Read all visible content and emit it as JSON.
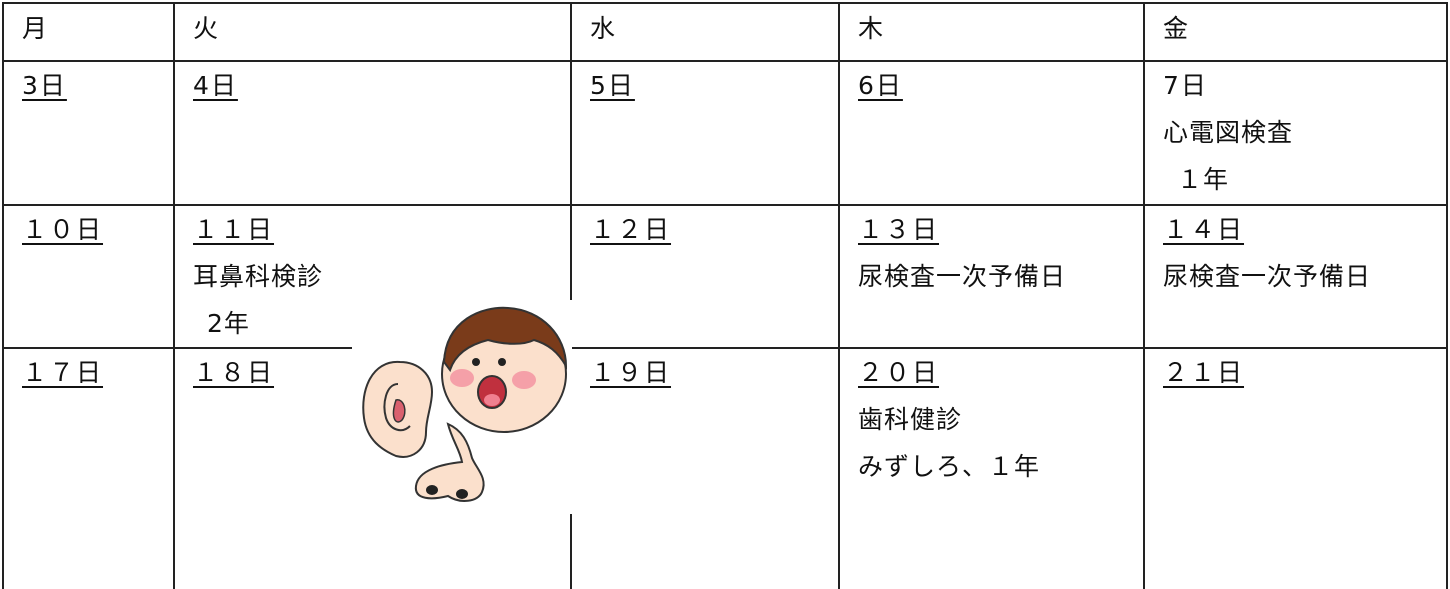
{
  "table": {
    "header": [
      "月",
      "火",
      "水",
      "木",
      "金"
    ],
    "rows": [
      [
        {
          "date": "3日"
        },
        {
          "date": "4日"
        },
        {
          "date": "5日"
        },
        {
          "date": "6日"
        },
        {
          "date": "7日",
          "lines": [
            "心電図検査",
            "１年"
          ]
        }
      ],
      [
        {
          "date": "１０日"
        },
        {
          "date": "１１日",
          "lines": [
            "耳鼻科検診",
            "2年"
          ]
        },
        {
          "date": "１２日"
        },
        {
          "date": "１３日",
          "lines": [
            "尿検査一次予備日"
          ]
        },
        {
          "date": "１４日",
          "lines": [
            "尿検査一次予備日"
          ]
        }
      ],
      [
        {
          "date": "１７日"
        },
        {
          "date": "１８日"
        },
        {
          "date": "１９日"
        },
        {
          "date": "２０日",
          "lines": [
            "歯科健診",
            "みずしろ、１年"
          ]
        },
        {
          "date": "２１日"
        }
      ]
    ]
  }
}
